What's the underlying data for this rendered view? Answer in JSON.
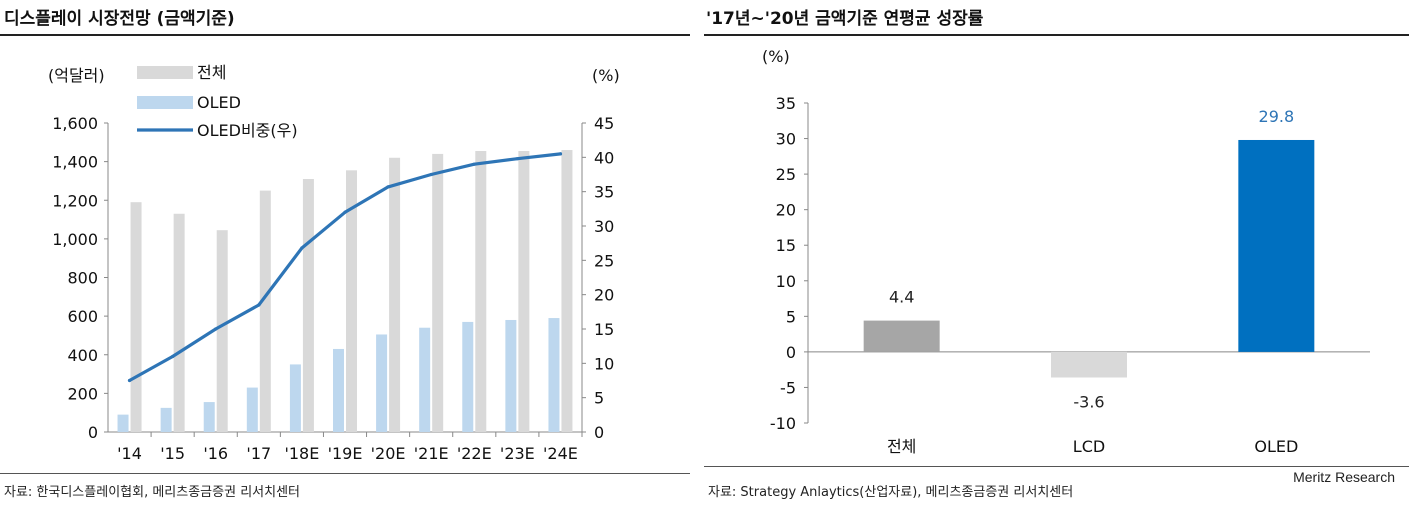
{
  "left_panel": {
    "title": "디스플레이 시장전망 (금액기준)",
    "source": "자료: 한국디스플레이협회, 메리츠종금증권 리서치센터"
  },
  "right_panel": {
    "title": "'17년~'20년 금액기준 연평균 성장률",
    "source": "자료: Strategy Anlaytics(산업자료), 메리츠종금증권 리서치센터",
    "brand": "Meritz Research"
  },
  "chart_data": [
    {
      "type": "bar",
      "categories": [
        "'14",
        "'15",
        "'16",
        "'17",
        "'18E",
        "'19E",
        "'20E",
        "'21E",
        "'22E",
        "'23E",
        "'24E"
      ],
      "y_left_label": "(억달러)",
      "y_right_label": "(%)",
      "y_left_ticks": [
        "1,600",
        "1,400",
        "1,200",
        "1,000",
        "800",
        "600",
        "400",
        "200",
        "0"
      ],
      "y_right_ticks": [
        "45",
        "40",
        "35",
        "30",
        "25",
        "20",
        "15",
        "10",
        "5",
        "0"
      ],
      "ylim_left": [
        0,
        1600
      ],
      "ylim_right": [
        0,
        45
      ],
      "series": [
        {
          "name": "전체",
          "type": "bar",
          "axis": "left",
          "color": "#d9d9d9",
          "values": [
            1190,
            1130,
            1045,
            1250,
            1310,
            1355,
            1420,
            1440,
            1455,
            1455,
            1460
          ]
        },
        {
          "name": "OLED",
          "type": "bar",
          "axis": "left",
          "color": "#bdd7ee",
          "values": [
            90,
            125,
            155,
            230,
            350,
            430,
            505,
            540,
            570,
            580,
            590
          ]
        },
        {
          "name": "OLED비중(우)",
          "type": "line",
          "axis": "right",
          "color": "#2e75b6",
          "values": [
            7.5,
            11.0,
            15.0,
            18.5,
            26.8,
            32.0,
            35.7,
            37.5,
            39.0,
            39.8,
            40.5
          ]
        }
      ],
      "legend_position": "top-left",
      "grid": false
    },
    {
      "type": "bar",
      "categories": [
        "전체",
        "LCD",
        "OLED"
      ],
      "values": [
        4.4,
        -3.6,
        29.8
      ],
      "data_labels": [
        "4.4",
        "-3.6",
        "29.8"
      ],
      "colors": [
        "#a6a6a6",
        "#d9d9d9",
        "#0070c0"
      ],
      "label_colors": [
        "#222222",
        "#222222",
        "#2e75b6"
      ],
      "y_label": "(%)",
      "y_ticks": [
        "35",
        "30",
        "25",
        "20",
        "15",
        "10",
        "5",
        "0",
        "-5",
        "-10"
      ],
      "ylim": [
        -10,
        35
      ],
      "grid": false
    }
  ]
}
